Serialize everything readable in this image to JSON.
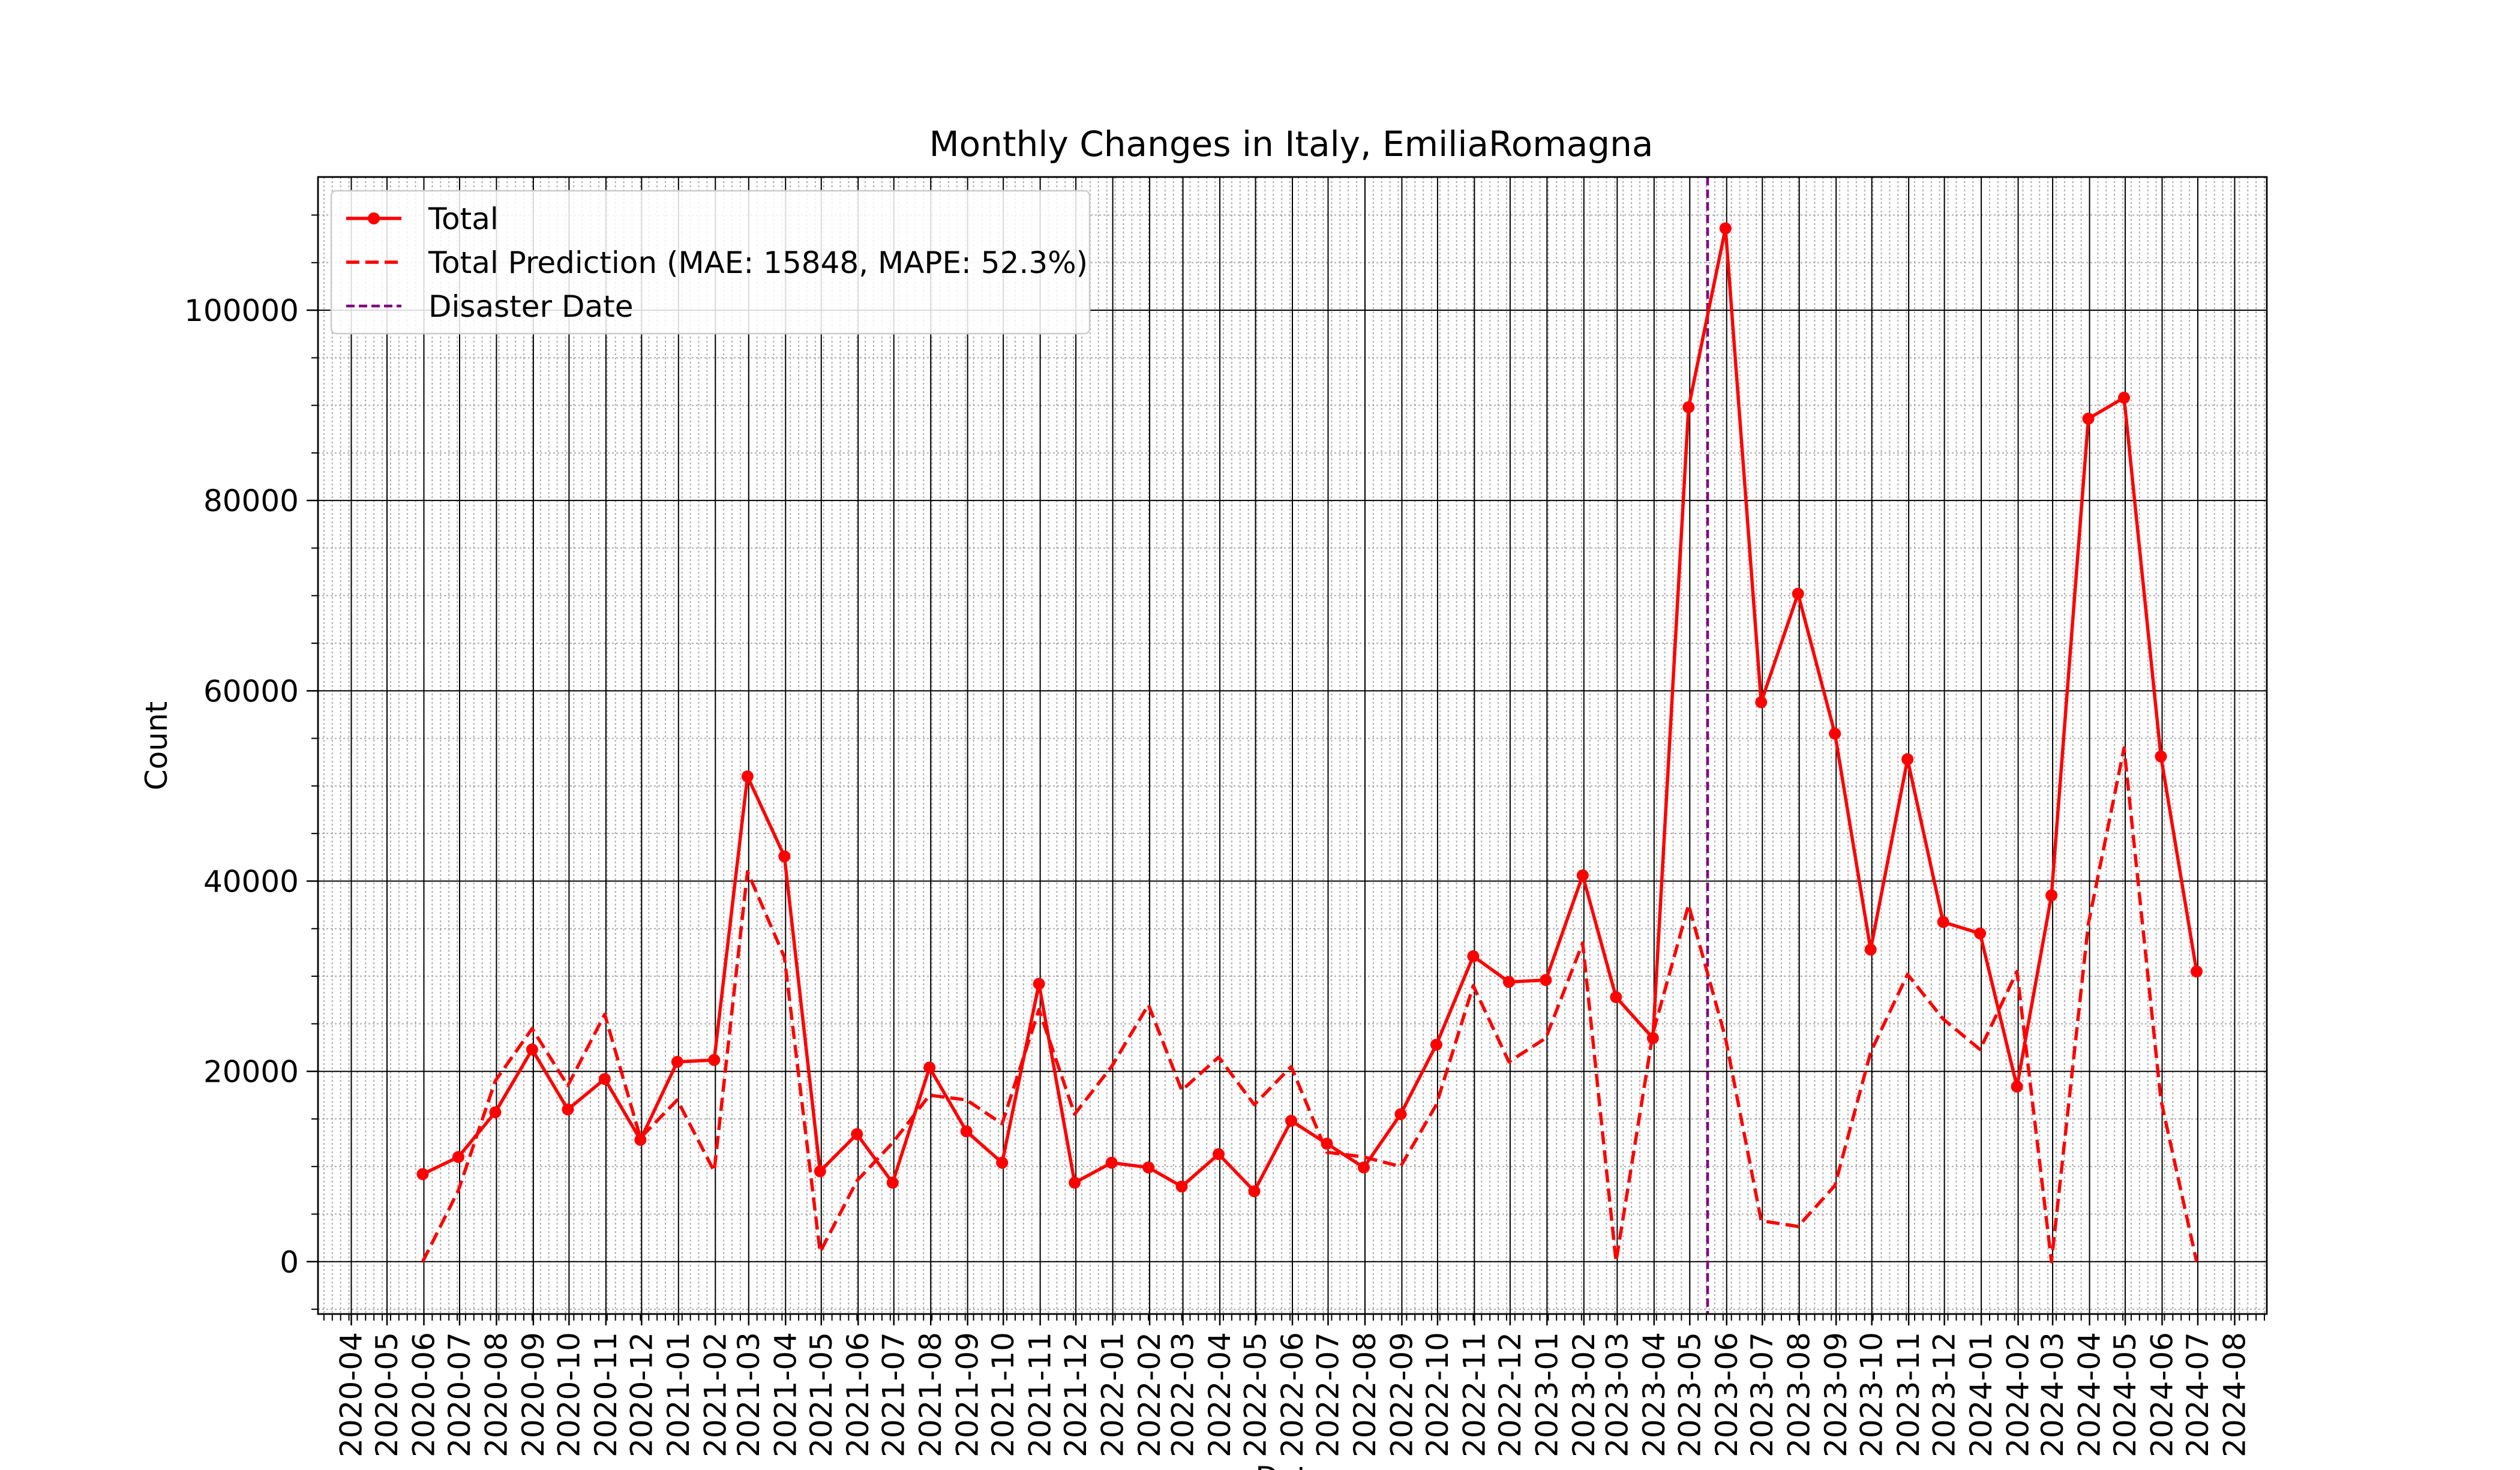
{
  "chart_data": {
    "type": "line",
    "title": "Monthly Changes in Italy, EmiliaRomagna",
    "xlabel": "Date",
    "ylabel": "Count",
    "ylim": [
      -5500,
      114000
    ],
    "yticks": [
      0,
      20000,
      40000,
      60000,
      80000,
      100000
    ],
    "grid": true,
    "legend_position": "top-left",
    "x_ticks": [
      "2020-04",
      "2020-05",
      "2020-06",
      "2020-07",
      "2020-08",
      "2020-09",
      "2020-10",
      "2020-11",
      "2020-12",
      "2021-01",
      "2021-02",
      "2021-03",
      "2021-04",
      "2021-05",
      "2021-06",
      "2021-07",
      "2021-08",
      "2021-09",
      "2021-10",
      "2021-11",
      "2021-12",
      "2022-01",
      "2022-02",
      "2022-03",
      "2022-04",
      "2022-05",
      "2022-06",
      "2022-07",
      "2022-08",
      "2022-09",
      "2022-10",
      "2022-11",
      "2022-12",
      "2023-01",
      "2023-02",
      "2023-03",
      "2023-04",
      "2023-05",
      "2023-06",
      "2023-07",
      "2023-08",
      "2023-09",
      "2023-10",
      "2023-11",
      "2023-12",
      "2024-01",
      "2024-02",
      "2024-03",
      "2024-04",
      "2024-05",
      "2024-06",
      "2024-07",
      "2024-08"
    ],
    "x": [
      "2020-05-31",
      "2020-06-30",
      "2020-07-31",
      "2020-08-31",
      "2020-09-30",
      "2020-10-31",
      "2020-11-30",
      "2020-12-31",
      "2021-01-31",
      "2021-02-28",
      "2021-03-31",
      "2021-04-30",
      "2021-05-31",
      "2021-06-30",
      "2021-07-31",
      "2021-08-31",
      "2021-09-30",
      "2021-10-31",
      "2021-11-30",
      "2021-12-31",
      "2022-01-31",
      "2022-02-28",
      "2022-03-31",
      "2022-04-30",
      "2022-05-31",
      "2022-06-30",
      "2022-07-31",
      "2022-08-31",
      "2022-09-30",
      "2022-10-31",
      "2022-11-30",
      "2022-12-31",
      "2023-01-31",
      "2023-02-28",
      "2023-03-31",
      "2023-04-30",
      "2023-05-31",
      "2023-06-30",
      "2023-07-31",
      "2023-08-31",
      "2023-09-30",
      "2023-10-31",
      "2023-11-30",
      "2023-12-31",
      "2024-01-31",
      "2024-02-29",
      "2024-03-31",
      "2024-04-30",
      "2024-05-31",
      "2024-06-30"
    ],
    "series": [
      {
        "name": "Total",
        "color": "#ff0000",
        "style": "solid-markers",
        "values": [
          9200,
          11000,
          15700,
          22300,
          16000,
          19200,
          12800,
          21000,
          21200,
          51000,
          42600,
          9500,
          13400,
          8300,
          20400,
          13700,
          10400,
          29200,
          8300,
          10400,
          9900,
          7900,
          11300,
          7400,
          14800,
          12400,
          9900,
          15500,
          22800,
          32100,
          29400,
          29600,
          40600,
          27800,
          23500,
          89800,
          108600,
          58800,
          70200,
          55500,
          32800,
          52800,
          35700,
          34500,
          18400,
          38500,
          88600,
          90800,
          53100,
          30500
        ]
      },
      {
        "name": "Total Prediction (MAE: 15848, MAPE: 52.3%)",
        "color": "#ff0000",
        "style": "dashed",
        "values": [
          0,
          7500,
          19000,
          24500,
          18500,
          26000,
          13000,
          17000,
          9500,
          41000,
          32000,
          1000,
          8500,
          12500,
          17500,
          17000,
          14500,
          26500,
          15500,
          20500,
          27000,
          18000,
          21500,
          16500,
          20500,
          11500,
          11000,
          10000,
          16500,
          29000,
          21000,
          23500,
          33500,
          0,
          24000,
          37500,
          23500,
          4300,
          3700,
          8000,
          22000,
          30200,
          25500,
          22300,
          30500,
          0,
          35500,
          54000,
          17000,
          0
        ]
      },
      {
        "name": "Disaster Date",
        "color": "#800080",
        "style": "dashed-vline",
        "x": "2023-05-16"
      }
    ]
  }
}
